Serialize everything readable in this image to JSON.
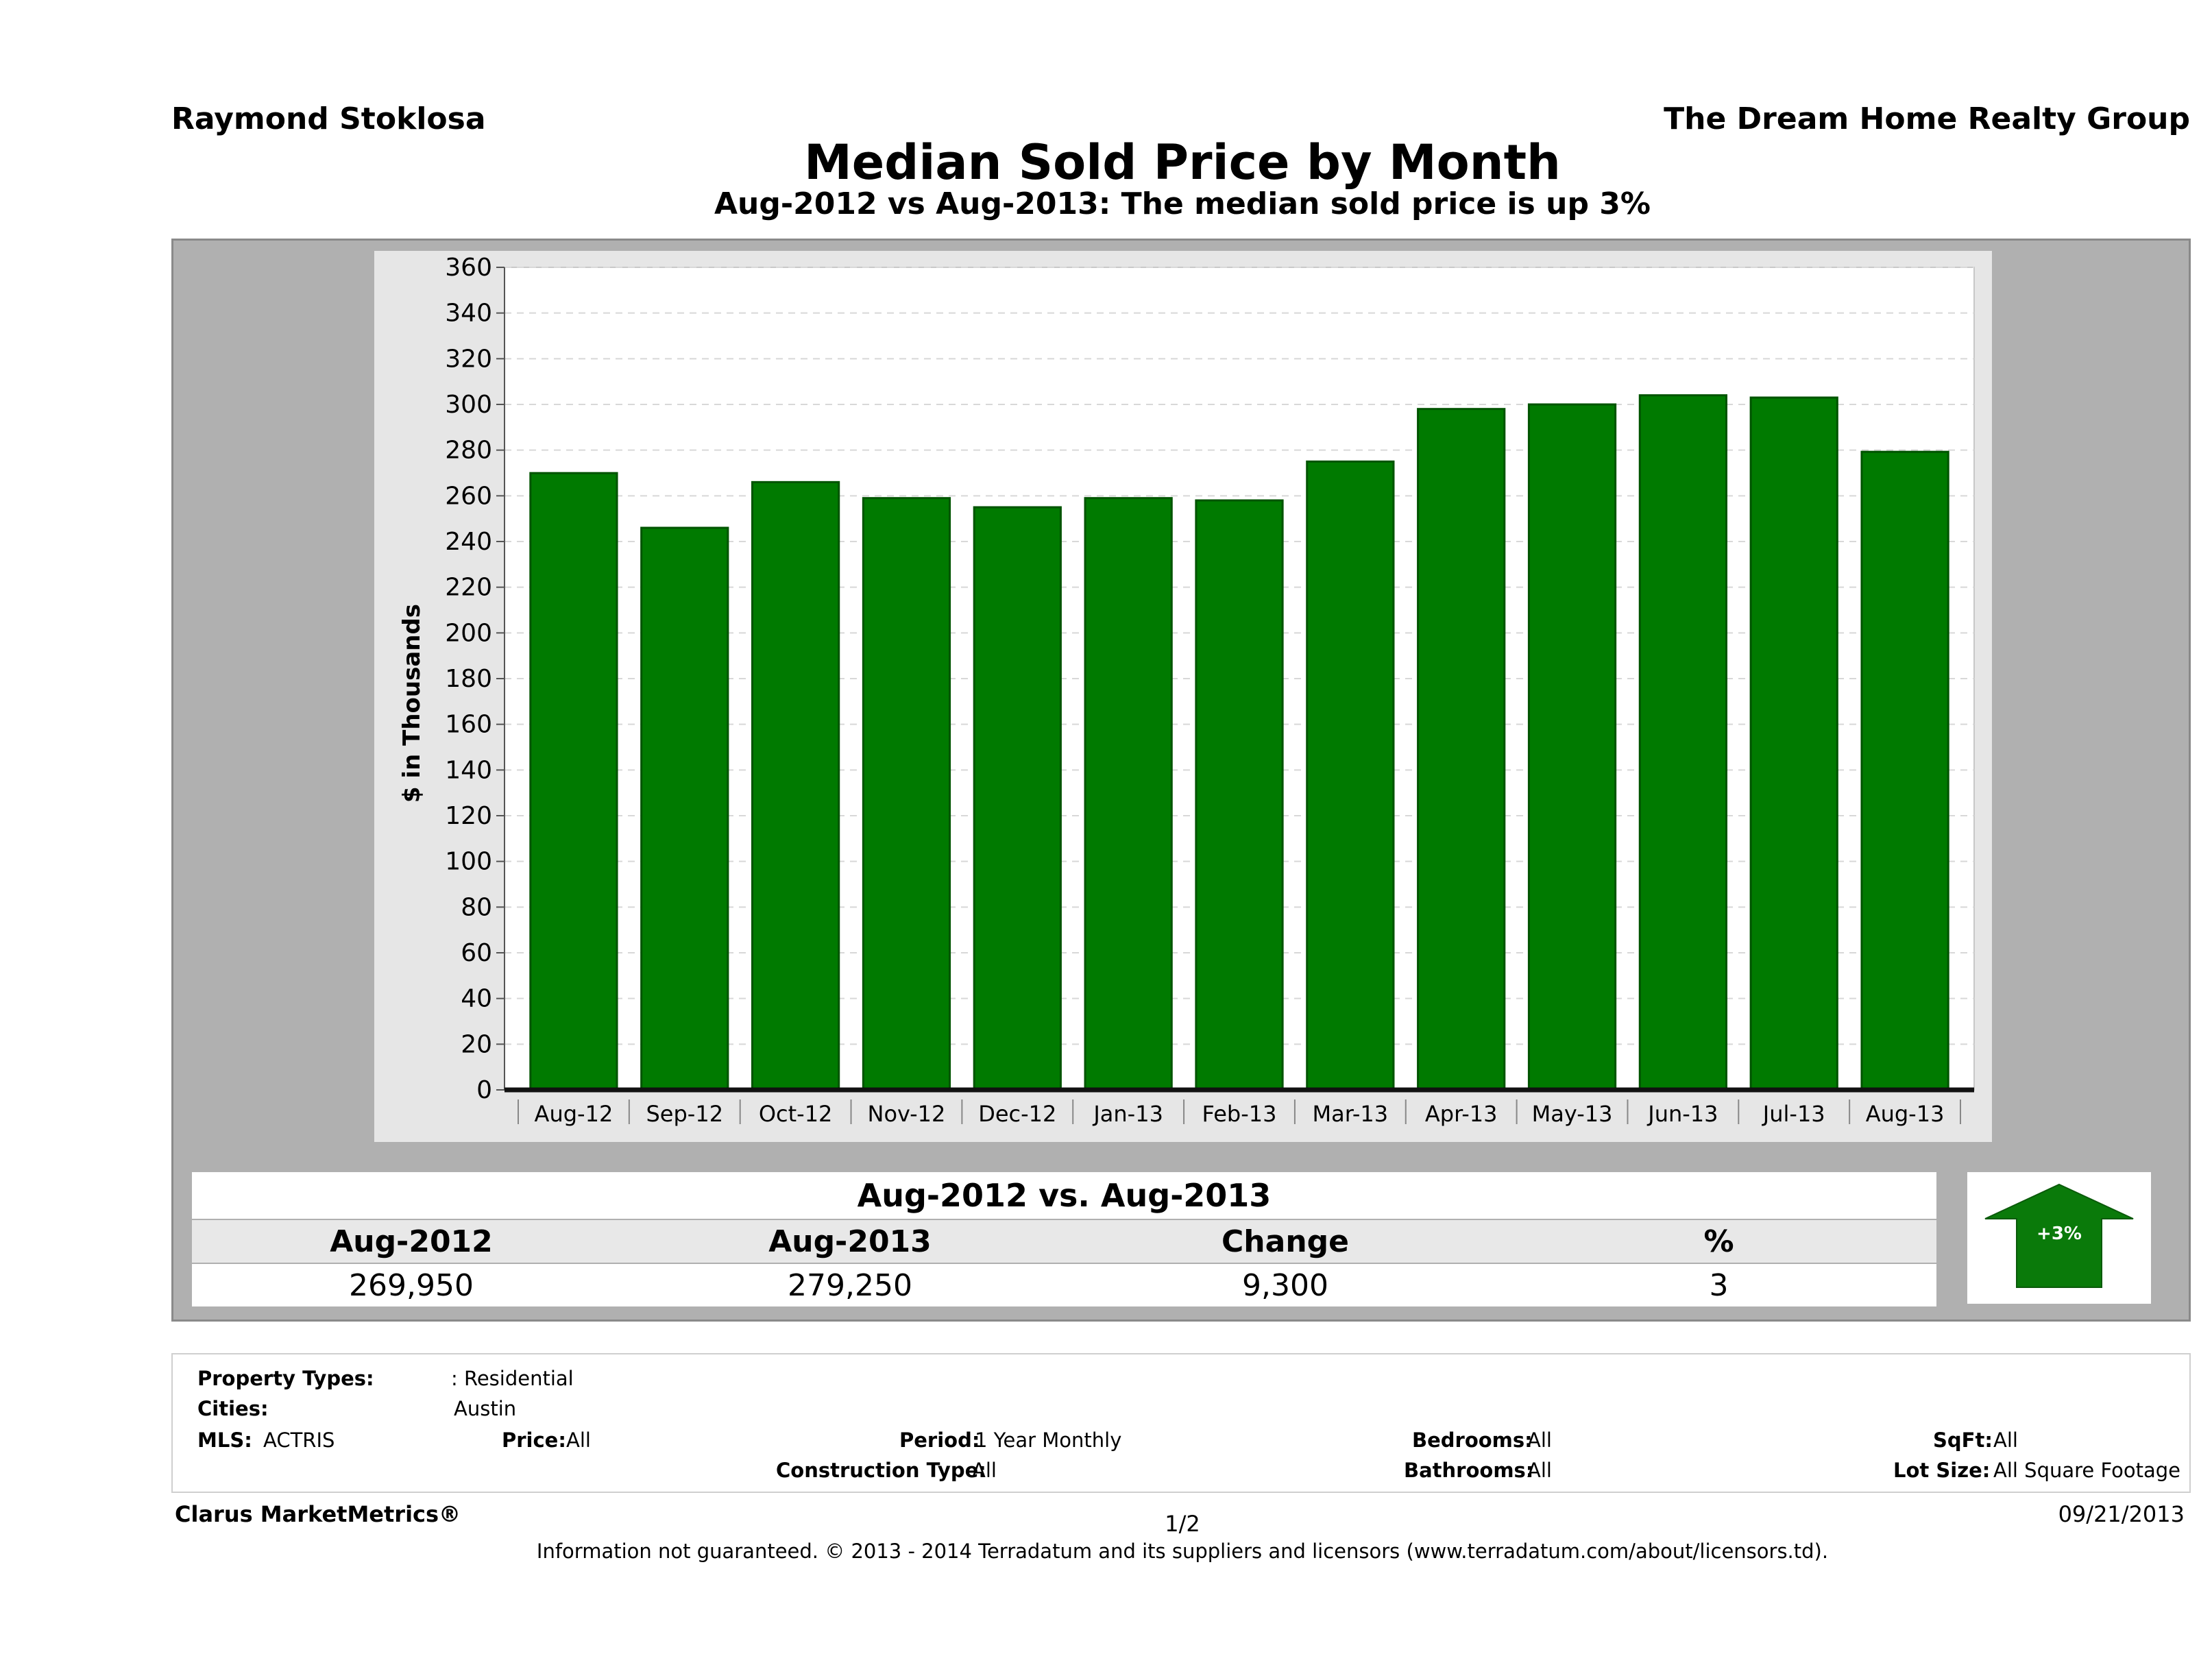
{
  "header": {
    "agent": "Raymond Stoklosa",
    "company": "The Dream Home Realty Group",
    "title": "Median Sold Price by Month",
    "subtitle": "Aug-2012 vs Aug-2013: The median sold price is up 3%"
  },
  "colors": {
    "bar": "#007a00",
    "bar_outline": "#005400",
    "panel": "#b0b0b0",
    "arrow": "#0a7a0a"
  },
  "chart_data": {
    "type": "bar",
    "categories": [
      "Aug-12",
      "Sep-12",
      "Oct-12",
      "Nov-12",
      "Dec-12",
      "Jan-13",
      "Feb-13",
      "Mar-13",
      "Apr-13",
      "May-13",
      "Jun-13",
      "Jul-13",
      "Aug-13"
    ],
    "values": [
      269.95,
      246,
      266,
      259,
      255,
      259,
      258,
      275,
      298,
      300,
      304,
      303,
      279.25
    ],
    "ylabel": "$ in Thousands",
    "ylim": [
      0,
      360
    ],
    "yticks": [
      0,
      20,
      40,
      60,
      80,
      100,
      120,
      140,
      160,
      180,
      200,
      220,
      240,
      260,
      280,
      300,
      320,
      340,
      360
    ],
    "grid": true
  },
  "comparison": {
    "title": "Aug-2012 vs. Aug-2013",
    "headers": [
      "Aug-2012",
      "Aug-2013",
      "Change",
      "%"
    ],
    "values": [
      "269,950",
      "279,250",
      "9,300",
      "3"
    ],
    "badge": "+3%"
  },
  "criteria": {
    "property_types_label": "Property Types:",
    "property_types_value": ": Residential",
    "cities_label": "Cities:",
    "cities_value": "Austin",
    "mls_label": "MLS:",
    "mls_value": "ACTRIS",
    "price_label": "Price:",
    "price_value": "All",
    "period_label": "Period:",
    "period_value": "1 Year Monthly",
    "construction_label": "Construction Type:",
    "construction_value": "All",
    "bedrooms_label": "Bedrooms:",
    "bedrooms_value": "All",
    "bathrooms_label": "Bathrooms:",
    "bathrooms_value": "All",
    "sqft_label": "SqFt:",
    "sqft_value": "All",
    "lotsize_label": "Lot Size:",
    "lotsize_value": "All Square Footage"
  },
  "footer": {
    "brand": "Clarus MarketMetrics®",
    "page": "1/2",
    "date": "09/21/2013",
    "disclaimer": "Information not guaranteed. © 2013 - 2014 Terradatum and its suppliers and licensors (www.terradatum.com/about/licensors.td)."
  }
}
